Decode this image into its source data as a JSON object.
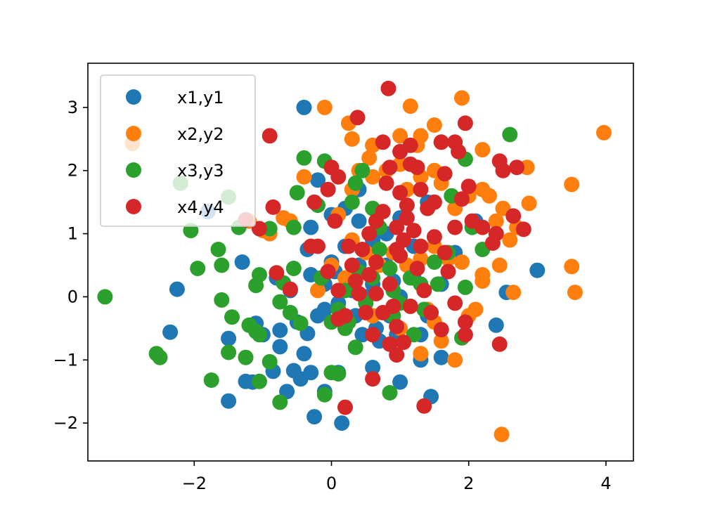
{
  "chart_data": {
    "type": "scatter",
    "title": "",
    "xlabel": "",
    "ylabel": "",
    "xlim": [
      -3.55,
      4.4
    ],
    "ylim": [
      -2.6,
      3.7
    ],
    "grid": false,
    "legend": {
      "placement": "top-left"
    },
    "x_ticks": [
      {
        "value": -2,
        "label": "−2"
      },
      {
        "value": 0,
        "label": "0"
      },
      {
        "value": 2,
        "label": "2"
      },
      {
        "value": 4,
        "label": "4"
      }
    ],
    "y_ticks": [
      {
        "value": -2,
        "label": "−2"
      },
      {
        "value": -1,
        "label": "−1"
      },
      {
        "value": 0,
        "label": "0"
      },
      {
        "value": 1,
        "label": "1"
      },
      {
        "value": 2,
        "label": "2"
      },
      {
        "value": 3,
        "label": "3"
      }
    ],
    "series": [
      {
        "name": "x1,y1",
        "color": "#1f77b4",
        "points": [
          [
            -0.4,
            3.0
          ],
          [
            -1.8,
            1.35
          ],
          [
            -2.25,
            0.12
          ],
          [
            -2.35,
            -0.56
          ],
          [
            -1.5,
            -0.66
          ],
          [
            -1.5,
            -1.65
          ],
          [
            -1.25,
            -1.34
          ],
          [
            -1.15,
            -1.35
          ],
          [
            -1.1,
            -0.42
          ],
          [
            -0.85,
            -1.18
          ],
          [
            -0.75,
            -0.79
          ],
          [
            -0.75,
            -0.53
          ],
          [
            -0.65,
            -1.5
          ],
          [
            -0.55,
            -1.17
          ],
          [
            -0.45,
            -1.3
          ],
          [
            -0.4,
            -0.9
          ],
          [
            -0.35,
            -0.58
          ],
          [
            -0.3,
            -1.2
          ],
          [
            -0.25,
            -1.9
          ],
          [
            -0.1,
            -1.5
          ],
          [
            0.15,
            -2.0
          ],
          [
            0.1,
            -1.2
          ],
          [
            -0.2,
            -0.3
          ],
          [
            0.2,
            -0.4
          ],
          [
            0.35,
            -0.3
          ],
          [
            0.45,
            -0.6
          ],
          [
            0.65,
            -0.5
          ],
          [
            0.7,
            -0.7
          ],
          [
            0.85,
            -0.3
          ],
          [
            0.95,
            -0.6
          ],
          [
            1.0,
            -1.35
          ],
          [
            1.3,
            -1.0
          ],
          [
            1.45,
            -1.58
          ],
          [
            1.6,
            -0.96
          ],
          [
            2.4,
            -0.45
          ],
          [
            2.55,
            0.07
          ],
          [
            3.0,
            0.42
          ],
          [
            -0.3,
            0.35
          ],
          [
            -0.1,
            0.2
          ],
          [
            0.0,
            0.55
          ],
          [
            0.2,
            0.8
          ],
          [
            0.4,
            0.5
          ],
          [
            0.6,
            0.2
          ],
          [
            0.8,
            0.5
          ],
          [
            1.0,
            0.0
          ],
          [
            1.2,
            0.3
          ],
          [
            1.4,
            -0.3
          ],
          [
            1.6,
            0.2
          ],
          [
            1.8,
            0.7
          ],
          [
            2.1,
            1.2
          ],
          [
            -0.2,
            1.85
          ],
          [
            -0.3,
            1.1
          ],
          [
            0.0,
            1.3
          ],
          [
            0.2,
            1.4
          ],
          [
            0.4,
            1.7
          ],
          [
            0.4,
            1.2
          ],
          [
            0.6,
            0.9
          ],
          [
            0.8,
            1.0
          ],
          [
            1.0,
            1.25
          ],
          [
            1.2,
            0.8
          ],
          [
            1.4,
            1.5
          ],
          [
            0.5,
            0.0
          ],
          [
            0.3,
            0.1
          ],
          [
            0.1,
            -0.1
          ],
          [
            -0.1,
            -0.2
          ],
          [
            -0.6,
            0.1
          ],
          [
            -0.8,
            0.3
          ],
          [
            -1.0,
            -0.6
          ],
          [
            -1.3,
            0.55
          ],
          [
            -0.5,
            -0.4
          ],
          [
            0.6,
            -1.12
          ],
          [
            1.3,
            -0.6
          ],
          [
            0.9,
            0.25
          ],
          [
            -0.35,
            0.75
          ],
          [
            0.05,
            0.4
          ]
        ]
      },
      {
        "name": "x2,y2",
        "color": "#ff7f0e",
        "points": [
          [
            -2.9,
            2.43
          ],
          [
            -0.1,
            3.0
          ],
          [
            1.15,
            3.02
          ],
          [
            1.9,
            3.15
          ],
          [
            3.97,
            2.6
          ],
          [
            3.5,
            1.78
          ],
          [
            3.5,
            0.48
          ],
          [
            3.55,
            0.07
          ],
          [
            2.65,
            0.07
          ],
          [
            2.45,
            0.5
          ],
          [
            2.48,
            -2.18
          ],
          [
            1.8,
            -1.0
          ],
          [
            1.3,
            -0.9
          ],
          [
            0.3,
            2.5
          ],
          [
            0.25,
            2.75
          ],
          [
            0.55,
            2.2
          ],
          [
            0.6,
            2.4
          ],
          [
            1.0,
            2.55
          ],
          [
            1.25,
            2.4
          ],
          [
            1.3,
            2.55
          ],
          [
            1.5,
            2.72
          ],
          [
            1.6,
            2.45
          ],
          [
            2.2,
            2.33
          ],
          [
            2.85,
            2.05
          ],
          [
            2.88,
            1.48
          ],
          [
            2.5,
            1.4
          ],
          [
            2.4,
            1.2
          ],
          [
            2.3,
            1.6
          ],
          [
            2.2,
            1.7
          ],
          [
            2.0,
            1.6
          ],
          [
            1.8,
            1.4
          ],
          [
            1.6,
            1.8
          ],
          [
            1.5,
            2.0
          ],
          [
            1.3,
            1.9
          ],
          [
            1.1,
            1.7
          ],
          [
            1.0,
            2.1
          ],
          [
            0.8,
            2.0
          ],
          [
            0.6,
            1.9
          ],
          [
            0.4,
            2.0
          ],
          [
            0.3,
            1.7
          ],
          [
            0.1,
            1.3
          ],
          [
            0.3,
            0.9
          ],
          [
            0.5,
            0.7
          ],
          [
            0.7,
            0.5
          ],
          [
            0.9,
            0.7
          ],
          [
            1.1,
            0.5
          ],
          [
            1.3,
            0.6
          ],
          [
            1.5,
            0.8
          ],
          [
            1.7,
            0.6
          ],
          [
            1.9,
            0.55
          ],
          [
            2.2,
            0.35
          ],
          [
            2.2,
            0.25
          ],
          [
            2.1,
            -0.2
          ],
          [
            2.0,
            -0.3
          ],
          [
            1.5,
            -0.4
          ],
          [
            1.4,
            -0.2
          ],
          [
            1.0,
            -0.5
          ],
          [
            0.6,
            -0.3
          ],
          [
            0.2,
            0.3
          ],
          [
            0.0,
            0.5
          ],
          [
            -0.2,
            0.1
          ],
          [
            -0.4,
            1.9
          ],
          [
            -0.6,
            1.2
          ],
          [
            -0.7,
            1.25
          ],
          [
            -1.0,
            1.05
          ],
          [
            -1.2,
            1.2
          ],
          [
            -0.9,
            1.0
          ],
          [
            2.7,
            1.1
          ],
          [
            2.6,
            0.9
          ],
          [
            1.6,
            -0.7
          ]
        ]
      },
      {
        "name": "x3,y3",
        "color": "#2ca02c",
        "points": [
          [
            -3.3,
            0.0
          ],
          [
            -2.2,
            1.8
          ],
          [
            -2.05,
            1.05
          ],
          [
            -1.95,
            0.45
          ],
          [
            -1.65,
            0.75
          ],
          [
            -1.6,
            0.5
          ],
          [
            -1.6,
            -0.05
          ],
          [
            -1.75,
            -1.32
          ],
          [
            -1.5,
            -0.88
          ],
          [
            -1.45,
            -0.32
          ],
          [
            -1.5,
            1.58
          ],
          [
            -1.35,
            1.1
          ],
          [
            -1.25,
            -0.96
          ],
          [
            -1.2,
            -0.45
          ],
          [
            -1.1,
            -0.55
          ],
          [
            -1.05,
            -0.6
          ],
          [
            -1.05,
            -1.34
          ],
          [
            -1.1,
            0.18
          ],
          [
            -1.05,
            0.35
          ],
          [
            -0.9,
            1.08
          ],
          [
            -0.9,
            -1.03
          ],
          [
            -0.75,
            -1.67
          ],
          [
            -0.75,
            -0.08
          ],
          [
            -0.7,
            0.22
          ],
          [
            -0.6,
            -0.25
          ],
          [
            -0.55,
            0.45
          ],
          [
            -0.55,
            1.1
          ],
          [
            -0.5,
            1.65
          ],
          [
            -0.45,
            -0.42
          ],
          [
            -0.4,
            2.2
          ],
          [
            -0.2,
            1.45
          ],
          [
            -0.1,
            2.15
          ],
          [
            -0.1,
            -1.55
          ],
          [
            0.0,
            -1.2
          ],
          [
            0.1,
            -1.22
          ],
          [
            0.0,
            -0.4
          ],
          [
            0.2,
            -0.5
          ],
          [
            0.35,
            -0.8
          ],
          [
            0.3,
            1.5
          ],
          [
            0.35,
            1.8
          ],
          [
            0.45,
            2.0
          ],
          [
            0.6,
            1.4
          ],
          [
            0.7,
            1.1
          ],
          [
            0.7,
            0.75
          ],
          [
            0.85,
            0.45
          ],
          [
            0.9,
            0.1
          ],
          [
            0.9,
            -0.3
          ],
          [
            0.85,
            -1.52
          ],
          [
            1.15,
            0.3
          ],
          [
            1.2,
            -0.6
          ],
          [
            1.35,
            -0.2
          ],
          [
            1.3,
            0.2
          ],
          [
            1.5,
            0.55
          ],
          [
            1.55,
            0.2
          ],
          [
            1.7,
            0.7
          ],
          [
            1.75,
            1.6
          ],
          [
            1.95,
            2.18
          ],
          [
            2.05,
            1.1
          ],
          [
            2.2,
            0.75
          ],
          [
            1.9,
            -0.65
          ],
          [
            1.95,
            0.15
          ],
          [
            2.6,
            2.57
          ],
          [
            0.5,
            -0.1
          ],
          [
            0.2,
            0.1
          ],
          [
            -0.15,
            0.3
          ],
          [
            0.1,
            -0.2
          ],
          [
            0.6,
            0.3
          ],
          [
            1.0,
            -0.1
          ],
          [
            0.4,
            0.4
          ],
          [
            -2.55,
            -0.9
          ],
          [
            -2.5,
            -0.96
          ],
          [
            0.25,
            -0.4
          ]
        ]
      },
      {
        "name": "x4,y4",
        "color": "#d62728",
        "points": [
          [
            0.83,
            3.3
          ],
          [
            0.38,
            2.84
          ],
          [
            -0.9,
            2.55
          ],
          [
            -0.85,
            1.42
          ],
          [
            -1.05,
            1.08
          ],
          [
            -1.25,
            1.22
          ],
          [
            0.0,
            2.05
          ],
          [
            0.1,
            1.9
          ],
          [
            -0.05,
            1.7
          ],
          [
            -0.25,
            1.5
          ],
          [
            0.05,
            1.2
          ],
          [
            -0.3,
            0.8
          ],
          [
            -0.2,
            0.8
          ],
          [
            -0.05,
            0.4
          ],
          [
            0.25,
            0.8
          ],
          [
            0.3,
            0.5
          ],
          [
            0.35,
            0.25
          ],
          [
            0.1,
            0.1
          ],
          [
            0.2,
            -0.3
          ],
          [
            0.1,
            -0.35
          ],
          [
            -0.6,
            0.12
          ],
          [
            -0.8,
            0.38
          ],
          [
            0.5,
            -0.25
          ],
          [
            0.6,
            -0.6
          ],
          [
            0.75,
            -0.25
          ],
          [
            0.65,
            0.05
          ],
          [
            0.85,
            -0.75
          ],
          [
            0.95,
            -0.92
          ],
          [
            1.05,
            -0.72
          ],
          [
            0.95,
            -0.47
          ],
          [
            1.15,
            -0.15
          ],
          [
            1.35,
            0.1
          ],
          [
            1.45,
            -0.25
          ],
          [
            1.6,
            -0.52
          ],
          [
            1.8,
            -0.1
          ],
          [
            1.35,
            -1.73
          ],
          [
            0.2,
            -1.75
          ],
          [
            0.6,
            -1.3
          ],
          [
            0.95,
            0.75
          ],
          [
            1.05,
            0.9
          ],
          [
            1.25,
            0.45
          ],
          [
            1.3,
            0.8
          ],
          [
            1.4,
            1.4
          ],
          [
            1.5,
            0.95
          ],
          [
            1.65,
            0.7
          ],
          [
            1.7,
            0.4
          ],
          [
            1.8,
            1.1
          ],
          [
            1.9,
            1.55
          ],
          [
            2.0,
            1.75
          ],
          [
            2.05,
            1.2
          ],
          [
            2.2,
            1.1
          ],
          [
            2.35,
            0.85
          ],
          [
            2.4,
            1.0
          ],
          [
            2.5,
            2.0
          ],
          [
            2.45,
            2.15
          ],
          [
            2.7,
            2.05
          ],
          [
            2.65,
            1.28
          ],
          [
            2.8,
            1.07
          ],
          [
            1.95,
            -0.4
          ],
          [
            1.95,
            -0.6
          ],
          [
            2.45,
            -0.75
          ],
          [
            0.75,
            2.45
          ],
          [
            0.85,
            2.05
          ],
          [
            1.0,
            1.65
          ],
          [
            1.0,
            2.3
          ],
          [
            1.15,
            2.1
          ],
          [
            1.15,
            2.4
          ],
          [
            1.25,
            2.05
          ],
          [
            1.3,
            1.7
          ],
          [
            1.5,
            1.5
          ],
          [
            1.6,
            2.45
          ],
          [
            1.65,
            1.95
          ],
          [
            1.8,
            2.45
          ],
          [
            1.85,
            2.3
          ],
          [
            1.95,
            2.75
          ],
          [
            0.95,
            1.1
          ],
          [
            0.75,
            1.35
          ],
          [
            0.65,
            1.2
          ],
          [
            0.55,
            1.0
          ],
          [
            0.45,
            0.75
          ],
          [
            0.65,
            0.55
          ],
          [
            1.1,
            1.25
          ],
          [
            1.2,
            1.05
          ],
          [
            0.8,
            1.8
          ],
          [
            1.1,
            1.45
          ],
          [
            0.4,
            0.05
          ],
          [
            0.85,
            0.2
          ],
          [
            1.0,
            0.65
          ],
          [
            0.55,
            0.35
          ],
          [
            0.9,
            -0.15
          ]
        ]
      }
    ]
  }
}
